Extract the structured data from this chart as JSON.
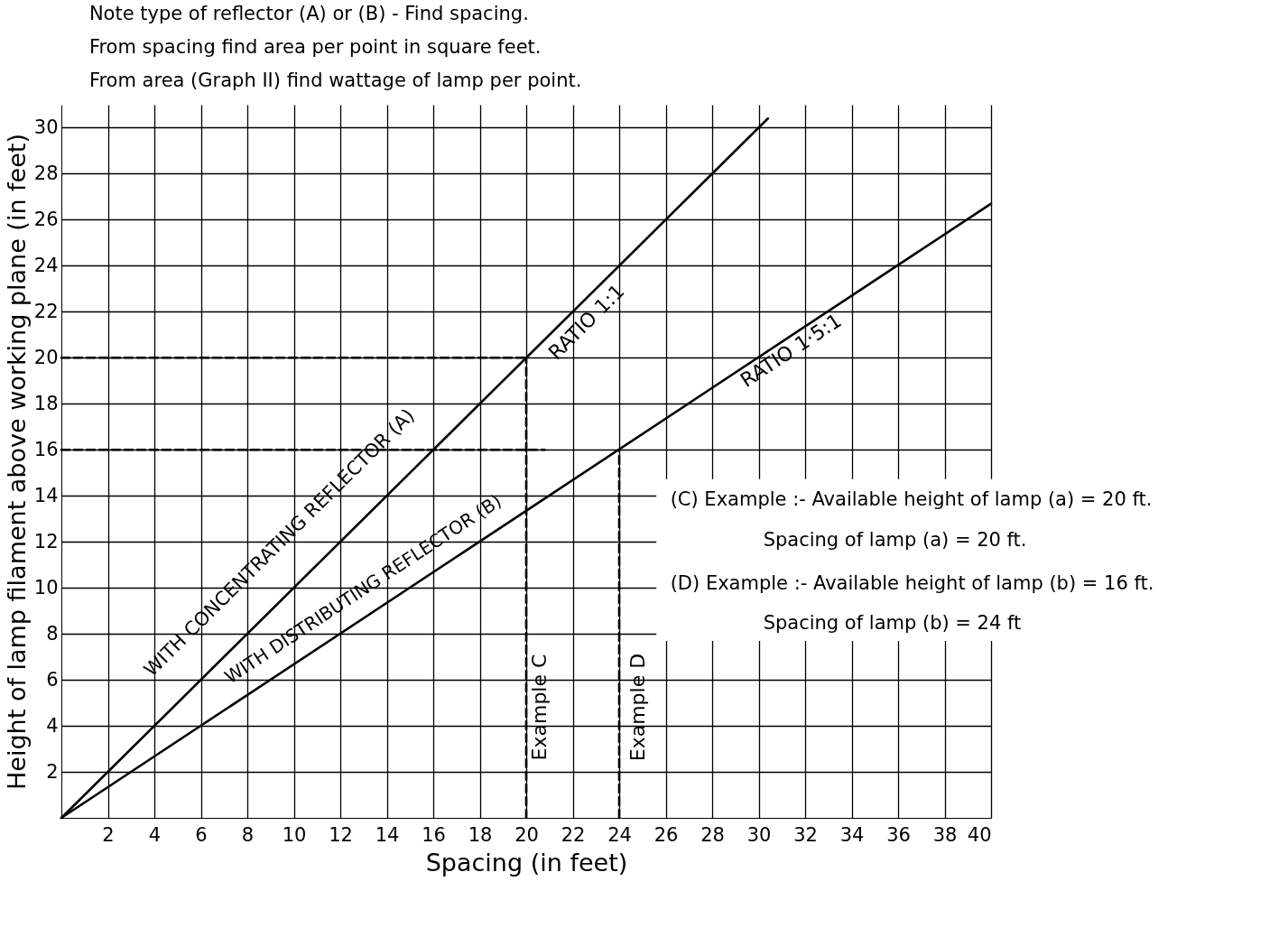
{
  "chart_data": {
    "type": "line",
    "xlabel": "Spacing  (in feet)",
    "ylabel": "Height of lamp filament above working plane (in feet)",
    "xlim": [
      0,
      40
    ],
    "ylim": [
      0,
      31
    ],
    "xticks": [
      2,
      4,
      6,
      8,
      10,
      12,
      14,
      16,
      18,
      20,
      22,
      24,
      26,
      28,
      30,
      32,
      34,
      36,
      38,
      40
    ],
    "yticks": [
      2,
      4,
      6,
      8,
      10,
      12,
      14,
      16,
      18,
      20,
      22,
      24,
      26,
      28,
      30
    ],
    "grid": true,
    "series": [
      {
        "color": "#000000",
        "line_style": "solid",
        "x": [
          0,
          30.4
        ],
        "values": [
          0,
          30.4
        ]
      },
      {
        "color": "#000000",
        "line_style": "solid",
        "x": [
          0,
          40
        ],
        "values": [
          0,
          26.7
        ]
      },
      {
        "color": "#000000",
        "line_style": "dashed",
        "x": [
          0,
          20
        ],
        "values": [
          20,
          20
        ]
      },
      {
        "color": "#000000",
        "line_style": "dashed",
        "x": [
          0,
          20.8
        ],
        "values": [
          16,
          16
        ]
      },
      {
        "color": "#000000",
        "line_style": "dashed",
        "x": [
          20,
          20
        ],
        "values": [
          0,
          20
        ]
      },
      {
        "color": "#000000",
        "line_style": "dashed",
        "x": [
          24,
          24
        ],
        "values": [
          0,
          16
        ]
      }
    ],
    "annotations": [
      "Note type of reflector (A) or (B) - Find spacing.",
      "From spacing find area per point in square feet.",
      "From area (Graph II) find wattage of lamp per point.",
      "(C) Example :- Available height of lamp (a) = 20 ft.",
      "Spacing of lamp        (a) = 20 ft.",
      "(D) Example :- Available height of lamp (b) = 16 ft.",
      "Spacing of lamp        (b) = 24 ft",
      "WITH CONCENTRATING REFLECTOR (A)",
      "RATIO 1:1",
      "WITH DISTRIBUTING REFLECTOR (B)",
      "RATIO 1·5:1",
      "Example C",
      "Example D"
    ]
  }
}
